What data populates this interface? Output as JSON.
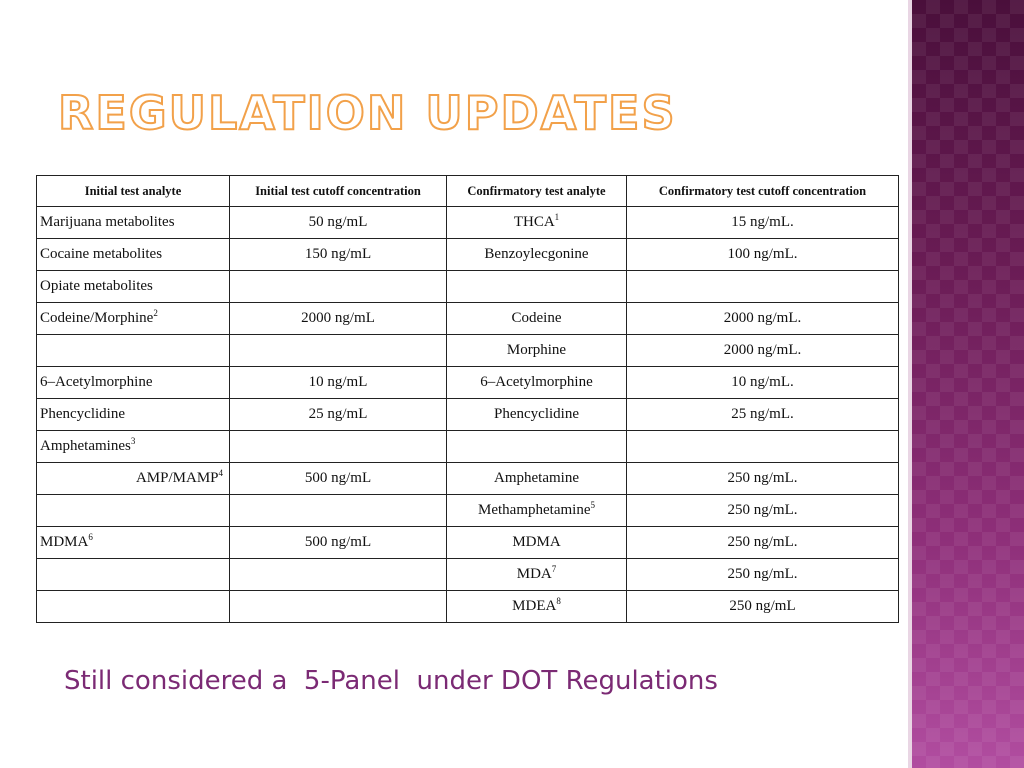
{
  "slide": {
    "title": "REGULATION UPDATES",
    "footer": "Still considered a  5-Panel  under DOT Regulations",
    "colors": {
      "title_outline": "#f2a14a",
      "footer_text": "#7b2a74",
      "side_band": "#6a1c55"
    }
  },
  "table": {
    "headers": [
      "Initial test analyte",
      "Initial test cutoff concentration",
      "Confirmatory test analyte",
      "Confirmatory test cutoff concentration"
    ],
    "rows": [
      [
        {
          "t": "Marijuana metabolites"
        },
        {
          "t": "50 ng/mL"
        },
        {
          "t": "THCA",
          "s": "1"
        },
        {
          "t": "15 ng/mL."
        }
      ],
      [
        {
          "t": "Cocaine metabolites"
        },
        {
          "t": "150 ng/mL"
        },
        {
          "t": "Benzoylecgonine"
        },
        {
          "t": "100 ng/mL."
        }
      ],
      [
        {
          "t": "Opiate metabolites"
        },
        {
          "t": ""
        },
        {
          "t": ""
        },
        {
          "t": ""
        }
      ],
      [
        {
          "t": "Codeine/Morphine",
          "s": "2"
        },
        {
          "t": "2000 ng/mL"
        },
        {
          "t": "Codeine"
        },
        {
          "t": "2000 ng/mL."
        }
      ],
      [
        {
          "t": ""
        },
        {
          "t": ""
        },
        {
          "t": "Morphine"
        },
        {
          "t": "2000 ng/mL."
        }
      ],
      [
        {
          "t": "6–Acetylmorphine"
        },
        {
          "t": "10 ng/mL"
        },
        {
          "t": "6–Acetylmorphine"
        },
        {
          "t": "10 ng/mL."
        }
      ],
      [
        {
          "t": "Phencyclidine"
        },
        {
          "t": "25 ng/mL"
        },
        {
          "t": "Phencyclidine"
        },
        {
          "t": "25 ng/mL."
        }
      ],
      [
        {
          "t": "Amphetamines",
          "s": "3"
        },
        {
          "t": ""
        },
        {
          "t": ""
        },
        {
          "t": ""
        }
      ],
      [
        {
          "t": "AMP/MAMP",
          "s": "4",
          "align": "right"
        },
        {
          "t": "500 ng/mL"
        },
        {
          "t": "Amphetamine"
        },
        {
          "t": "250 ng/mL."
        }
      ],
      [
        {
          "t": ""
        },
        {
          "t": ""
        },
        {
          "t": "Methamphetamine",
          "s": "5"
        },
        {
          "t": "250 ng/mL."
        }
      ],
      [
        {
          "t": "MDMA",
          "s": "6"
        },
        {
          "t": "500 ng/mL"
        },
        {
          "t": "MDMA"
        },
        {
          "t": "250 ng/mL."
        }
      ],
      [
        {
          "t": ""
        },
        {
          "t": ""
        },
        {
          "t": "MDA",
          "s": "7"
        },
        {
          "t": "250 ng/mL."
        }
      ],
      [
        {
          "t": ""
        },
        {
          "t": ""
        },
        {
          "t": "MDEA",
          "s": "8"
        },
        {
          "t": "250 ng/mL"
        }
      ]
    ]
  }
}
